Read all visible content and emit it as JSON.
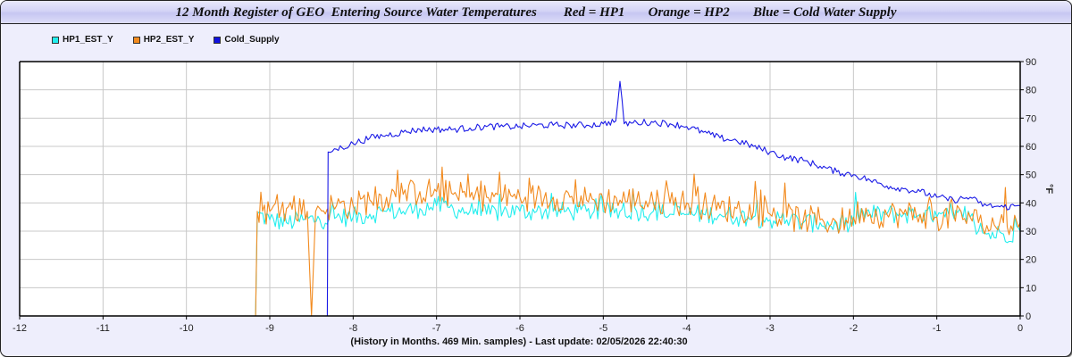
{
  "chart_data": {
    "type": "line",
    "title": "12 Month Register of GEO  Entering Source Water Temperatures        Red = HP1       Orange = HP2       Blue = Cold Water Supply",
    "xlabel": "(History in Months. 469 Min. samples) - Last update: 02/05/2026 22:40:30",
    "ylabel": "°F",
    "xlim": [
      -12,
      0
    ],
    "ylim": [
      0,
      90
    ],
    "x_ticks": [
      -12,
      -11,
      -10,
      -9,
      -8,
      -7,
      -6,
      -5,
      -4,
      -3,
      -2,
      -1,
      0
    ],
    "y_ticks": [
      0,
      10,
      20,
      30,
      40,
      50,
      60,
      70,
      80,
      90
    ],
    "grid": true,
    "legend_position": "top-left",
    "series": [
      {
        "name": "HP1_EST_Y",
        "color": "#22eeee",
        "noise": 3.5,
        "x": [
          -9.17,
          -9.15,
          -9.0,
          -8.8,
          -8.6,
          -8.4,
          -8.2,
          -8.0,
          -7.8,
          -7.6,
          -7.4,
          -7.2,
          -7.0,
          -6.8,
          -6.6,
          -6.4,
          -6.2,
          -6.0,
          -5.8,
          -5.6,
          -5.4,
          -5.2,
          -5.0,
          -4.8,
          -4.6,
          -4.4,
          -4.2,
          -4.0,
          -3.8,
          -3.6,
          -3.4,
          -3.2,
          -3.0,
          -2.8,
          -2.6,
          -2.4,
          -2.2,
          -2.0,
          -1.95,
          -1.8,
          -1.6,
          -1.4,
          -1.2,
          -1.0,
          -0.9,
          -0.6,
          -0.5,
          -0.4,
          -0.2,
          0.0
        ],
        "y": [
          0,
          36,
          34,
          33,
          34,
          34,
          35,
          35,
          36,
          37,
          37,
          38,
          39,
          38,
          37,
          36,
          37,
          37,
          37,
          37,
          37,
          37,
          37,
          37,
          37,
          37,
          36,
          36,
          36,
          36,
          35,
          35,
          34,
          34,
          33,
          33,
          32,
          32,
          36,
          36,
          36,
          36,
          36,
          35,
          35,
          35,
          30,
          29,
          29,
          30
        ]
      },
      {
        "name": "HP2_EST_Y",
        "color": "#f28a1e",
        "noise": 5,
        "x": [
          -9.17,
          -9.15,
          -9.0,
          -8.8,
          -8.55,
          -8.5,
          -8.45,
          -8.4,
          -8.2,
          -8.0,
          -7.8,
          -7.6,
          -7.4,
          -7.2,
          -7.0,
          -6.8,
          -6.6,
          -6.4,
          -6.2,
          -6.0,
          -5.8,
          -5.6,
          -5.4,
          -5.2,
          -5.0,
          -4.8,
          -4.6,
          -4.4,
          -4.2,
          -4.0,
          -3.8,
          -3.6,
          -3.4,
          -3.2,
          -3.0,
          -2.8,
          -2.6,
          -2.4,
          -2.2,
          -2.0,
          -1.9,
          -1.8,
          -1.6,
          -1.4,
          -1.2,
          -1.0,
          -0.6,
          -0.5,
          -0.4,
          -0.2,
          0.0
        ],
        "y": [
          0,
          37,
          37,
          38,
          37,
          0,
          37,
          38,
          39,
          39,
          41,
          42,
          43,
          44,
          44,
          43,
          42,
          42,
          42,
          42,
          42,
          42,
          42,
          41,
          41,
          41,
          41,
          40,
          40,
          40,
          39,
          38,
          38,
          37,
          36,
          35,
          34,
          34,
          33,
          35,
          38,
          36,
          36,
          36,
          36,
          35,
          35,
          33,
          32,
          33,
          33
        ]
      },
      {
        "name": "Cold_Supply",
        "color": "#1a1ae6",
        "noise": 1.2,
        "x": [
          -8.31,
          -8.3,
          -8.2,
          -8.0,
          -7.8,
          -7.6,
          -7.4,
          -7.2,
          -7.0,
          -6.8,
          -6.6,
          -6.4,
          -6.2,
          -6.0,
          -5.8,
          -5.6,
          -5.4,
          -5.2,
          -5.0,
          -4.85,
          -4.8,
          -4.75,
          -4.6,
          -4.4,
          -4.2,
          -4.0,
          -3.8,
          -3.6,
          -3.4,
          -3.2,
          -3.0,
          -2.8,
          -2.6,
          -2.4,
          -2.2,
          -2.0,
          -1.8,
          -1.6,
          -1.4,
          -1.2,
          -1.0,
          -0.8,
          -0.6,
          -0.5,
          -0.4,
          -0.2,
          0.0
        ],
        "y": [
          0,
          58,
          59,
          61,
          63,
          64,
          65,
          66,
          66,
          66,
          66.5,
          67,
          67,
          67,
          67.5,
          67.5,
          67.5,
          67.5,
          68,
          69,
          83,
          68,
          68.5,
          68.5,
          68,
          67,
          65,
          63,
          62,
          60,
          58,
          56,
          55,
          53,
          51,
          50,
          48,
          46,
          45,
          44,
          42,
          41,
          42,
          40,
          39,
          38.5,
          39
        ]
      }
    ]
  }
}
